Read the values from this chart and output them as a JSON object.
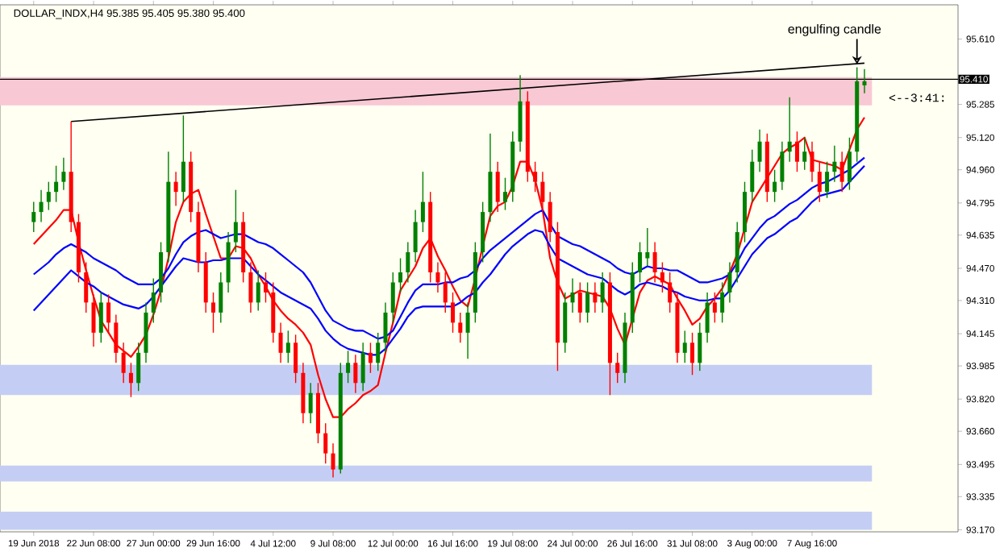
{
  "chart_data": {
    "type": "candlestick",
    "title": "DOLLAR_INDX,H4  95.385 95.405 95.380 95.400",
    "categories": [
      "19 Jun 2018",
      null,
      null,
      null,
      null,
      null,
      null,
      null,
      "22 Jun 08:00",
      null,
      null,
      null,
      null,
      null,
      null,
      null,
      "27 Jun 00:00",
      null,
      null,
      null,
      null,
      null,
      null,
      null,
      "29 Jun 16:00",
      null,
      null,
      null,
      null,
      null,
      null,
      null,
      "4 Jul 12:00",
      null,
      null,
      null,
      null,
      null,
      null,
      null,
      "9 Jul 08:00",
      null,
      null,
      null,
      null,
      null,
      null,
      null,
      "12 Jul 00:00",
      null,
      null,
      null,
      null,
      null,
      null,
      null,
      "16 Jul 16:00",
      null,
      null,
      null,
      null,
      null,
      null,
      null,
      "19 Jul 08:00",
      null,
      null,
      null,
      null,
      null,
      null,
      null,
      "24 Jul 00:00",
      null,
      null,
      null,
      null,
      null,
      null,
      null,
      "26 Jul 16:00",
      null,
      null,
      null,
      null,
      null,
      null,
      null,
      "31 Jul 08:00",
      null,
      null,
      null,
      null,
      null,
      null,
      null,
      "3 Aug 00:00",
      null,
      null,
      null,
      null,
      null,
      null,
      null,
      "7 Aug 16:00",
      null,
      null,
      null,
      null,
      null,
      null,
      null
    ],
    "ohlc": [
      [
        94.7,
        94.8,
        94.65,
        94.75
      ],
      [
        94.75,
        94.86,
        94.7,
        94.8
      ],
      [
        94.8,
        94.9,
        94.76,
        94.85
      ],
      [
        94.85,
        94.98,
        94.8,
        94.9
      ],
      [
        94.9,
        95.02,
        94.86,
        94.95
      ],
      [
        94.95,
        95.2,
        94.65,
        94.7
      ],
      [
        94.7,
        94.74,
        94.4,
        94.45
      ],
      [
        94.45,
        94.5,
        94.25,
        94.3
      ],
      [
        94.3,
        94.34,
        94.08,
        94.15
      ],
      [
        94.15,
        94.35,
        94.1,
        94.3
      ],
      [
        94.3,
        94.34,
        94.15,
        94.2
      ],
      [
        94.2,
        94.24,
        94.0,
        94.05
      ],
      [
        94.05,
        94.1,
        93.9,
        93.95
      ],
      [
        93.95,
        94.0,
        93.83,
        93.9
      ],
      [
        93.9,
        94.1,
        93.86,
        94.05
      ],
      [
        94.05,
        94.3,
        94.0,
        94.25
      ],
      [
        94.25,
        94.42,
        94.2,
        94.35
      ],
      [
        94.35,
        94.6,
        94.3,
        94.55
      ],
      [
        94.55,
        95.05,
        94.5,
        94.9
      ],
      [
        94.9,
        94.95,
        94.78,
        94.85
      ],
      [
        94.85,
        95.23,
        94.8,
        95.0
      ],
      [
        95.0,
        95.05,
        94.7,
        94.75
      ],
      [
        94.75,
        94.8,
        94.45,
        94.5
      ],
      [
        94.5,
        94.55,
        94.25,
        94.3
      ],
      [
        94.3,
        94.35,
        94.15,
        94.25
      ],
      [
        94.25,
        94.45,
        94.2,
        94.4
      ],
      [
        94.4,
        94.65,
        94.35,
        94.6
      ],
      [
        94.6,
        94.86,
        94.55,
        94.7
      ],
      [
        94.7,
        94.75,
        94.4,
        94.45
      ],
      [
        94.45,
        94.5,
        94.25,
        94.3
      ],
      [
        94.3,
        94.46,
        94.26,
        94.4
      ],
      [
        94.4,
        94.45,
        94.3,
        94.35
      ],
      [
        94.35,
        94.4,
        94.1,
        94.15
      ],
      [
        94.15,
        94.2,
        94.0,
        94.05
      ],
      [
        94.05,
        94.16,
        94.0,
        94.1
      ],
      [
        94.1,
        94.14,
        93.9,
        93.95
      ],
      [
        93.95,
        94.0,
        93.7,
        93.75
      ],
      [
        93.75,
        93.9,
        93.7,
        93.85
      ],
      [
        93.85,
        93.9,
        93.6,
        93.65
      ],
      [
        93.65,
        93.7,
        93.5,
        93.55
      ],
      [
        93.55,
        93.6,
        93.43,
        93.47
      ],
      [
        93.47,
        94.0,
        93.45,
        93.95
      ],
      [
        93.95,
        94.06,
        93.9,
        94.0
      ],
      [
        94.0,
        94.04,
        93.85,
        93.9
      ],
      [
        93.9,
        94.1,
        93.86,
        94.05
      ],
      [
        94.05,
        94.1,
        93.95,
        94.0
      ],
      [
        94.0,
        94.15,
        93.96,
        94.1
      ],
      [
        94.1,
        94.3,
        94.05,
        94.25
      ],
      [
        94.25,
        94.45,
        94.2,
        94.4
      ],
      [
        94.4,
        94.52,
        94.35,
        94.45
      ],
      [
        94.45,
        94.6,
        94.4,
        94.55
      ],
      [
        94.55,
        94.76,
        94.5,
        94.7
      ],
      [
        94.7,
        94.95,
        94.65,
        94.8
      ],
      [
        94.8,
        94.85,
        94.4,
        94.45
      ],
      [
        94.45,
        94.5,
        94.35,
        94.4
      ],
      [
        94.4,
        94.45,
        94.25,
        94.3
      ],
      [
        94.3,
        94.35,
        94.15,
        94.2
      ],
      [
        94.2,
        94.25,
        94.1,
        94.15
      ],
      [
        94.15,
        94.3,
        94.02,
        94.25
      ],
      [
        94.25,
        94.6,
        94.2,
        94.55
      ],
      [
        94.55,
        94.8,
        94.5,
        94.75
      ],
      [
        94.75,
        95.14,
        94.7,
        94.95
      ],
      [
        94.95,
        95.0,
        94.75,
        94.8
      ],
      [
        94.8,
        94.92,
        94.76,
        94.85
      ],
      [
        94.85,
        95.15,
        94.8,
        95.1
      ],
      [
        95.1,
        95.43,
        95.05,
        95.3
      ],
      [
        95.3,
        95.35,
        94.9,
        94.95
      ],
      [
        94.95,
        95.0,
        94.85,
        94.9
      ],
      [
        94.9,
        94.95,
        94.75,
        94.8
      ],
      [
        94.8,
        94.85,
        94.6,
        94.65
      ],
      [
        94.65,
        94.7,
        93.96,
        94.1
      ],
      [
        94.1,
        94.35,
        94.05,
        94.3
      ],
      [
        94.3,
        94.42,
        94.25,
        94.35
      ],
      [
        94.35,
        94.4,
        94.2,
        94.25
      ],
      [
        94.25,
        94.4,
        94.2,
        94.35
      ],
      [
        94.35,
        94.4,
        94.25,
        94.3
      ],
      [
        94.3,
        94.45,
        94.25,
        94.4
      ],
      [
        94.4,
        94.45,
        93.84,
        94.0
      ],
      [
        94.0,
        94.05,
        93.9,
        93.95
      ],
      [
        93.95,
        94.25,
        93.9,
        94.2
      ],
      [
        94.2,
        94.5,
        94.15,
        94.45
      ],
      [
        94.45,
        94.6,
        94.4,
        94.55
      ],
      [
        94.52,
        94.67,
        94.48,
        94.55
      ],
      [
        94.55,
        94.6,
        94.4,
        94.45
      ],
      [
        94.45,
        94.5,
        94.35,
        94.4
      ],
      [
        94.4,
        94.45,
        94.25,
        94.3
      ],
      [
        94.3,
        94.35,
        94.0,
        94.05
      ],
      [
        94.05,
        94.16,
        94.0,
        94.1
      ],
      [
        94.1,
        94.15,
        93.94,
        94.0
      ],
      [
        94.0,
        94.2,
        93.96,
        94.15
      ],
      [
        94.15,
        94.35,
        94.1,
        94.3
      ],
      [
        94.3,
        94.35,
        94.2,
        94.25
      ],
      [
        94.25,
        94.4,
        94.2,
        94.35
      ],
      [
        94.35,
        94.5,
        94.3,
        94.45
      ],
      [
        94.45,
        94.7,
        94.4,
        94.65
      ],
      [
        94.65,
        94.9,
        94.6,
        94.85
      ],
      [
        94.85,
        95.06,
        94.8,
        95.0
      ],
      [
        95.0,
        95.16,
        94.95,
        95.1
      ],
      [
        95.1,
        95.14,
        94.8,
        94.85
      ],
      [
        94.85,
        94.96,
        94.8,
        94.9
      ],
      [
        94.9,
        95.1,
        94.86,
        95.05
      ],
      [
        95.05,
        95.32,
        95.0,
        95.1
      ],
      [
        95.1,
        95.15,
        94.95,
        95.0
      ],
      [
        95.0,
        95.12,
        94.96,
        95.05
      ],
      [
        95.05,
        95.1,
        94.9,
        94.95
      ],
      [
        94.95,
        95.0,
        94.8,
        94.85
      ],
      [
        94.85,
        95.0,
        94.82,
        94.95
      ],
      [
        94.95,
        95.08,
        94.9,
        95.0
      ],
      [
        95.0,
        95.05,
        94.85,
        94.9
      ],
      [
        94.9,
        95.12,
        94.86,
        95.05
      ],
      [
        95.05,
        95.47,
        95.0,
        95.4
      ],
      [
        95.38,
        95.46,
        95.34,
        95.4
      ]
    ],
    "colors": [
      "#008000",
      "#008000",
      "#008000",
      "#008000",
      "#008000",
      "#ff0000",
      "#ff0000",
      "#ff0000",
      "#ff0000",
      "#008000",
      "#ff0000",
      "#ff0000",
      "#ff0000",
      "#ff0000",
      "#008000",
      "#008000",
      "#008000",
      "#008000",
      "#008000",
      "#ff0000",
      "#008000",
      "#ff0000",
      "#ff0000",
      "#ff0000",
      "#ff0000",
      "#008000",
      "#008000",
      "#008000",
      "#ff0000",
      "#ff0000",
      "#008000",
      "#ff0000",
      "#ff0000",
      "#ff0000",
      "#008000",
      "#ff0000",
      "#ff0000",
      "#008000",
      "#ff0000",
      "#ff0000",
      "#ff0000",
      "#008000",
      "#008000",
      "#ff0000",
      "#008000",
      "#ff0000",
      "#008000",
      "#008000",
      "#008000",
      "#008000",
      "#008000",
      "#008000",
      "#008000",
      "#ff0000",
      "#ff0000",
      "#ff0000",
      "#ff0000",
      "#ff0000",
      "#008000",
      "#008000",
      "#008000",
      "#008000",
      "#ff0000",
      "#008000",
      "#008000",
      "#008000",
      "#ff0000",
      "#ff0000",
      "#ff0000",
      "#ff0000",
      "#ff0000",
      "#008000",
      "#008000",
      "#ff0000",
      "#008000",
      "#ff0000",
      "#008000",
      "#ff0000",
      "#ff0000",
      "#008000",
      "#008000",
      "#008000",
      "#008000",
      "#ff0000",
      "#ff0000",
      "#ff0000",
      "#ff0000",
      "#008000",
      "#ff0000",
      "#008000",
      "#008000",
      "#ff0000",
      "#008000",
      "#008000",
      "#008000",
      "#008000",
      "#008000",
      "#008000",
      "#ff0000",
      "#008000",
      "#008000",
      "#008000",
      "#ff0000",
      "#008000",
      "#ff0000",
      "#ff0000",
      "#008000",
      "#008000",
      "#ff0000",
      "#008000",
      "#008000",
      "#008000"
    ],
    "series": [
      {
        "type": "line",
        "color": "#ff0000",
        "values": [
          94.59,
          94.63,
          94.67,
          94.71,
          94.76,
          94.76,
          94.6,
          94.46,
          94.33,
          94.21,
          94.15,
          94.09,
          94.06,
          94.03,
          94.08,
          94.14,
          94.24,
          94.36,
          94.52,
          94.7,
          94.8,
          94.84,
          94.86,
          94.74,
          94.63,
          94.52,
          94.52,
          94.58,
          94.57,
          94.52,
          94.44,
          94.38,
          94.31,
          94.26,
          94.22,
          94.19,
          94.15,
          94.09,
          93.94,
          93.82,
          93.73,
          93.73,
          93.77,
          93.8,
          93.84,
          93.86,
          93.89,
          94.05,
          94.2,
          94.36,
          94.42,
          94.48,
          94.57,
          94.62,
          94.53,
          94.46,
          94.38,
          94.31,
          94.28,
          94.42,
          94.58,
          94.73,
          94.78,
          94.8,
          94.88,
          95.0,
          95.0,
          94.91,
          94.76,
          94.52,
          94.4,
          94.32,
          94.34,
          94.36,
          94.35,
          94.34,
          94.33,
          94.27,
          94.17,
          94.09,
          94.22,
          94.35,
          94.41,
          94.43,
          94.41,
          94.39,
          94.32,
          94.26,
          94.19,
          94.22,
          94.28,
          94.32,
          94.37,
          94.45,
          94.54,
          94.67,
          94.8,
          94.86,
          94.92,
          94.98,
          95.04,
          95.07,
          95.09,
          95.12,
          95.01,
          95.0,
          94.99,
          94.98,
          94.96,
          95.06,
          95.16,
          95.22
        ]
      },
      {
        "type": "line",
        "color": "#0000ff",
        "values": [
          94.44,
          94.47,
          94.5,
          94.54,
          94.57,
          94.59,
          94.57,
          94.55,
          94.52,
          94.5,
          94.48,
          94.46,
          94.43,
          94.41,
          94.39,
          94.39,
          94.39,
          94.42,
          94.47,
          94.54,
          94.6,
          94.63,
          94.65,
          94.66,
          94.64,
          94.62,
          94.63,
          94.64,
          94.64,
          94.62,
          94.6,
          94.59,
          94.57,
          94.54,
          94.51,
          94.48,
          94.45,
          94.4,
          94.33,
          94.26,
          94.21,
          94.19,
          94.17,
          94.16,
          94.16,
          94.14,
          94.12,
          94.13,
          94.16,
          94.23,
          94.3,
          94.36,
          94.39,
          94.39,
          94.39,
          94.4,
          94.4,
          94.42,
          94.43,
          94.46,
          94.52,
          94.56,
          94.59,
          94.62,
          94.65,
          94.68,
          94.71,
          94.74,
          94.76,
          94.69,
          94.63,
          94.61,
          94.59,
          94.58,
          94.56,
          94.54,
          94.52,
          94.5,
          94.47,
          94.45,
          94.44,
          94.46,
          94.48,
          94.47,
          94.47,
          94.46,
          94.46,
          94.44,
          94.42,
          94.4,
          94.4,
          94.41,
          94.42,
          94.44,
          94.5,
          94.57,
          94.62,
          94.67,
          94.71,
          94.73,
          94.76,
          94.79,
          94.81,
          94.84,
          94.87,
          94.89,
          94.9,
          94.92,
          94.94,
          94.96,
          94.99,
          95.02
        ]
      },
      {
        "type": "line",
        "color": "#0000ff",
        "values": [
          94.26,
          94.3,
          94.34,
          94.38,
          94.42,
          94.46,
          94.43,
          94.4,
          94.38,
          94.35,
          94.33,
          94.31,
          94.29,
          94.28,
          94.27,
          94.29,
          94.33,
          94.38,
          94.43,
          94.48,
          94.52,
          94.51,
          94.5,
          94.5,
          94.51,
          94.51,
          94.52,
          94.52,
          94.52,
          94.48,
          94.44,
          94.41,
          94.38,
          94.35,
          94.33,
          94.31,
          94.29,
          94.27,
          94.22,
          94.16,
          94.12,
          94.09,
          94.07,
          94.06,
          94.05,
          94.04,
          94.04,
          94.07,
          94.12,
          94.17,
          94.23,
          94.27,
          94.28,
          94.28,
          94.28,
          94.28,
          94.28,
          94.3,
          94.33,
          94.35,
          94.4,
          94.44,
          94.49,
          94.54,
          94.58,
          94.61,
          94.64,
          94.66,
          94.65,
          94.58,
          94.52,
          94.5,
          94.48,
          94.46,
          94.44,
          94.43,
          94.42,
          94.39,
          94.36,
          94.34,
          94.36,
          94.39,
          94.4,
          94.39,
          94.38,
          94.36,
          94.35,
          94.33,
          94.32,
          94.31,
          94.31,
          94.32,
          94.32,
          94.36,
          94.42,
          94.48,
          94.54,
          94.58,
          94.62,
          94.64,
          94.67,
          94.7,
          94.72,
          94.76,
          94.8,
          94.83,
          94.84,
          94.85,
          94.86,
          94.9,
          94.94,
          94.98
        ]
      },
      {
        "type": "line",
        "color": "#000000",
        "values": [
          null,
          null,
          null,
          null,
          null,
          95.2,
          null,
          null,
          null,
          null,
          null,
          null,
          null,
          null,
          null,
          null,
          null,
          null,
          null,
          null,
          null,
          null,
          null,
          null,
          null,
          null,
          null,
          null,
          null,
          null,
          null,
          null,
          null,
          null,
          null,
          null,
          null,
          null,
          null,
          null,
          null,
          null,
          null,
          null,
          null,
          null,
          null,
          null,
          null,
          null,
          null,
          null,
          null,
          null,
          null,
          null,
          null,
          null,
          null,
          null,
          null,
          null,
          null,
          null,
          null,
          null,
          null,
          null,
          null,
          null,
          null,
          null,
          null,
          null,
          null,
          null,
          null,
          null,
          null,
          null,
          null,
          null,
          null,
          null,
          null,
          null,
          null,
          null,
          null,
          null,
          null,
          null,
          null,
          null,
          null,
          null,
          null,
          null,
          null,
          null,
          null,
          null,
          null,
          null,
          null,
          null,
          null,
          null,
          null,
          null,
          null,
          95.49
        ]
      }
    ],
    "ylim": [
      93.16,
      95.78
    ],
    "yticks": [
      {
        "value": 93.17,
        "label": "93.170"
      },
      93.335,
      93.495,
      {
        "value": 93.66,
        "label": "93.660"
      },
      {
        "value": 93.82,
        "label": "93.820"
      },
      93.985,
      94.145,
      {
        "value": 94.31,
        "label": "94.310"
      },
      {
        "value": 94.47,
        "label": "94.470"
      },
      94.635,
      94.795,
      {
        "value": 94.96,
        "label": "94.960"
      },
      {
        "value": 95.12,
        "label": "95.120"
      },
      95.285,
      {
        "value": 95.61,
        "label": "95.610"
      }
    ],
    "ref_lines": [
      {
        "axis": "y",
        "value": 95.41,
        "label": "95.410",
        "color": "#000000"
      }
    ],
    "bands": [
      {
        "axis": "y",
        "from": 95.28,
        "to": 95.42,
        "color": "#f8c8d4"
      },
      {
        "axis": "y",
        "from": 93.84,
        "to": 93.99,
        "color": "#c4cef4"
      },
      {
        "axis": "y",
        "from": 93.41,
        "to": 93.49,
        "color": "#c4cef4"
      },
      {
        "axis": "y",
        "from": 93.17,
        "to": 93.26,
        "color": "#c4cef4"
      }
    ],
    "annotations": [
      {
        "text": "engulfing candle",
        "y": 95.47
      },
      "<--3:41:"
    ]
  }
}
